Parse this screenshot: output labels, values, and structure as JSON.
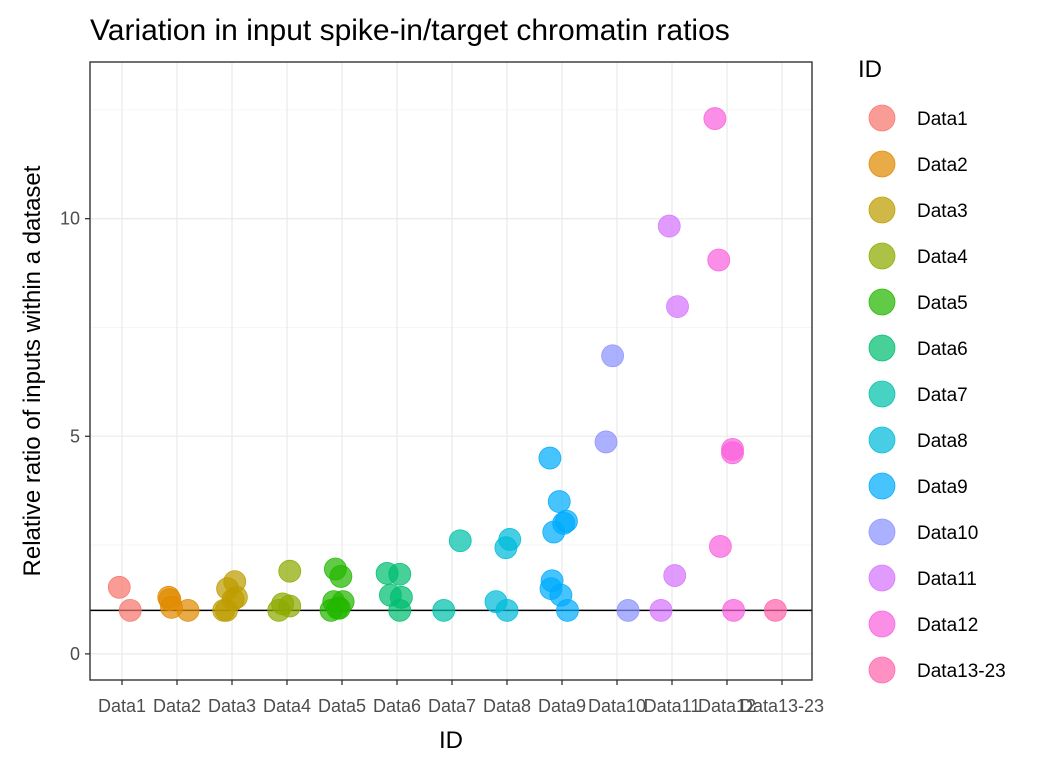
{
  "chart_data": {
    "type": "scatter",
    "title": "Variation in input spike-in/target chromatin ratios",
    "xlabel": "ID",
    "ylabel": "Relative ratio of inputs within a dataset",
    "categories": [
      "Data1",
      "Data2",
      "Data3",
      "Data4",
      "Data5",
      "Data6",
      "Data7",
      "Data8",
      "Data9",
      "Data10",
      "Data11",
      "Data12",
      "Data13-23"
    ],
    "ylim": [
      -0.6,
      13.6
    ],
    "yticks": [
      0,
      5,
      10
    ],
    "reference_line_y": 1,
    "grid": true,
    "legend": {
      "title": "ID",
      "position": "right"
    },
    "colors": [
      "#F8766D",
      "#E18A00",
      "#BE9C00",
      "#8CAB00",
      "#24B700",
      "#00BE70",
      "#00C1AB",
      "#00BBDA",
      "#00ACFC",
      "#8B93FF",
      "#D575FE",
      "#F962DD",
      "#FF65AC"
    ],
    "series": [
      {
        "name": "Data1",
        "points": [
          [
            0.95,
            1.53
          ],
          [
            1.15,
            1.0
          ]
        ]
      },
      {
        "name": "Data2",
        "points": [
          [
            1.85,
            1.3
          ],
          [
            1.87,
            1.25
          ],
          [
            1.9,
            1.07
          ],
          [
            2.2,
            1.0
          ]
        ]
      },
      {
        "name": "Data3",
        "points": [
          [
            2.85,
            1.0
          ],
          [
            2.9,
            1.0
          ],
          [
            2.92,
            1.5
          ],
          [
            3.02,
            1.25
          ],
          [
            3.05,
            1.66
          ],
          [
            3.08,
            1.3
          ]
        ]
      },
      {
        "name": "Data4",
        "points": [
          [
            3.85,
            1.0
          ],
          [
            3.92,
            1.15
          ],
          [
            4.05,
            1.1
          ],
          [
            4.05,
            1.9
          ]
        ]
      },
      {
        "name": "Data5",
        "points": [
          [
            4.8,
            1.0
          ],
          [
            4.85,
            1.2
          ],
          [
            4.88,
            1.95
          ],
          [
            4.92,
            1.05
          ],
          [
            4.95,
            1.05
          ],
          [
            4.98,
            1.78
          ],
          [
            5.02,
            1.2
          ]
        ]
      },
      {
        "name": "Data6",
        "points": [
          [
            5.82,
            1.85
          ],
          [
            5.88,
            1.35
          ],
          [
            6.05,
            1.83
          ],
          [
            6.05,
            1.0
          ],
          [
            6.08,
            1.3
          ]
        ]
      },
      {
        "name": "Data7",
        "points": [
          [
            6.85,
            1.0
          ],
          [
            7.15,
            2.6
          ]
        ]
      },
      {
        "name": "Data8",
        "points": [
          [
            7.8,
            1.2
          ],
          [
            7.98,
            2.44
          ],
          [
            8.0,
            1.0
          ],
          [
            8.05,
            2.63
          ]
        ]
      },
      {
        "name": "Data9",
        "points": [
          [
            8.78,
            4.5
          ],
          [
            8.8,
            1.5
          ],
          [
            8.82,
            1.68
          ],
          [
            8.85,
            2.8
          ],
          [
            8.95,
            3.5
          ],
          [
            8.98,
            1.35
          ],
          [
            9.03,
            3.0
          ],
          [
            9.08,
            3.05
          ],
          [
            9.1,
            1.0
          ]
        ]
      },
      {
        "name": "Data10",
        "points": [
          [
            9.8,
            4.87
          ],
          [
            9.92,
            6.85
          ],
          [
            10.2,
            1.0
          ]
        ]
      },
      {
        "name": "Data11",
        "points": [
          [
            10.8,
            1.0
          ],
          [
            10.95,
            9.83
          ],
          [
            11.05,
            1.8
          ],
          [
            11.1,
            7.98
          ]
        ]
      },
      {
        "name": "Data12",
        "points": [
          [
            11.78,
            12.3
          ],
          [
            11.85,
            9.05
          ],
          [
            11.88,
            2.47
          ],
          [
            12.1,
            4.7
          ],
          [
            12.1,
            4.62
          ],
          [
            12.12,
            1.0
          ]
        ]
      },
      {
        "name": "Data13-23",
        "points": [
          [
            12.88,
            1.0
          ]
        ]
      }
    ]
  }
}
